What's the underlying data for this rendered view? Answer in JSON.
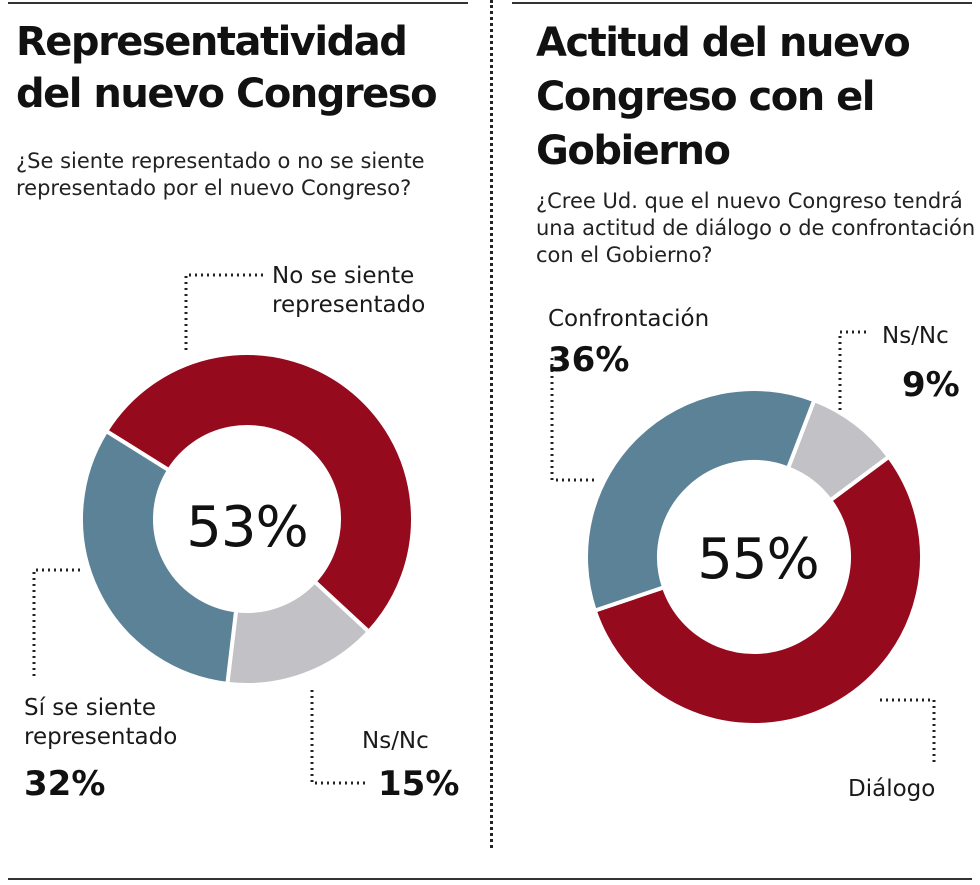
{
  "chart_data": [
    {
      "type": "donut",
      "title": "Representatividad del nuevo Congreso",
      "question": "¿Se siente representado o no se siente representado por el nuevo Congreso?",
      "center_label": "53%",
      "slices": [
        {
          "label": "No se siente representado",
          "value": 53,
          "value_text": "",
          "color": "#960a1e"
        },
        {
          "label": "Ns/Nc",
          "value": 15,
          "value_text": "15%",
          "color": "#c2c2c6"
        },
        {
          "label": "Sí se siente representado",
          "value": 32,
          "value_text": "32%",
          "color": "#5b8297"
        }
      ]
    },
    {
      "type": "donut",
      "title": "Actitud del nuevo Congreso con el Gobierno",
      "question": "¿Cree Ud. que el nuevo Congreso tendrá una actitud de diálogo o de confrontación con el Gobierno?",
      "center_label": "55%",
      "slices": [
        {
          "label": "Ns/Nc",
          "value": 9,
          "value_text": "9%",
          "color": "#c2c2c6"
        },
        {
          "label": "Diálogo",
          "value": 55,
          "value_text": "",
          "color": "#960a1e"
        },
        {
          "label": "Confrontación",
          "value": 36,
          "value_text": "36%",
          "color": "#5b8297"
        }
      ]
    }
  ]
}
